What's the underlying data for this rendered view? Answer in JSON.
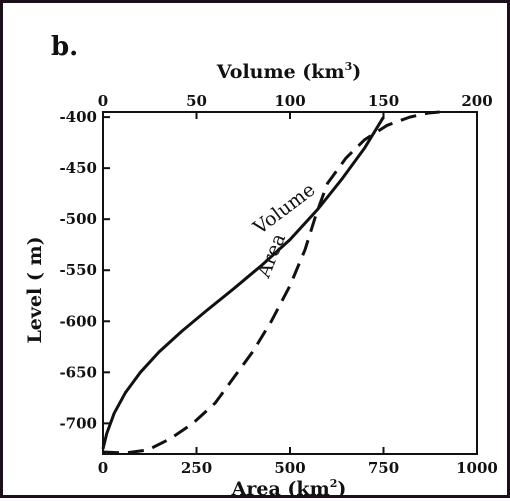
{
  "chart_data": {
    "type": "line",
    "panel_label": "b.",
    "x_top": {
      "label": "Volume (km",
      "label_sup": "3",
      "label_close": ")",
      "range": [
        0,
        200
      ],
      "ticks": [
        0,
        50,
        100,
        150,
        200
      ]
    },
    "x_bottom": {
      "label": "Area (km",
      "label_sup": "2",
      "label_close": ")",
      "range": [
        0,
        1000
      ],
      "ticks": [
        0,
        250,
        500,
        750,
        1000
      ]
    },
    "y": {
      "label": "Level ( m)",
      "range": [
        -730,
        -395
      ],
      "ticks": [
        -400,
        -450,
        -500,
        -550,
        -600,
        -650,
        -700
      ],
      "tick_labels": [
        "-400",
        "-450",
        "-500",
        "-550",
        "-600",
        "-650",
        "-700"
      ]
    },
    "series": [
      {
        "name": "Volume",
        "axis": "top",
        "style": "solid",
        "annotation": "Volume",
        "x": [
          0,
          2,
          6,
          12,
          20,
          30,
          42,
          55,
          70,
          85,
          100,
          115,
          128,
          140,
          150
        ],
        "y": [
          -725,
          -710,
          -690,
          -670,
          -650,
          -630,
          -610,
          -590,
          -568,
          -545,
          -520,
          -490,
          -460,
          -430,
          -400
        ]
      },
      {
        "name": "Area",
        "axis": "bottom",
        "style": "dashed",
        "annotation": "Area",
        "x": [
          0,
          60,
          120,
          180,
          240,
          300,
          350,
          400,
          450,
          500,
          540,
          570,
          600,
          650,
          700,
          760,
          820,
          870,
          900
        ],
        "y": [
          -728,
          -729,
          -726,
          -715,
          -700,
          -680,
          -655,
          -630,
          -600,
          -565,
          -530,
          -495,
          -465,
          -440,
          -422,
          -408,
          -400,
          -396,
          -395
        ]
      }
    ],
    "grid": false,
    "legend": "none"
  }
}
